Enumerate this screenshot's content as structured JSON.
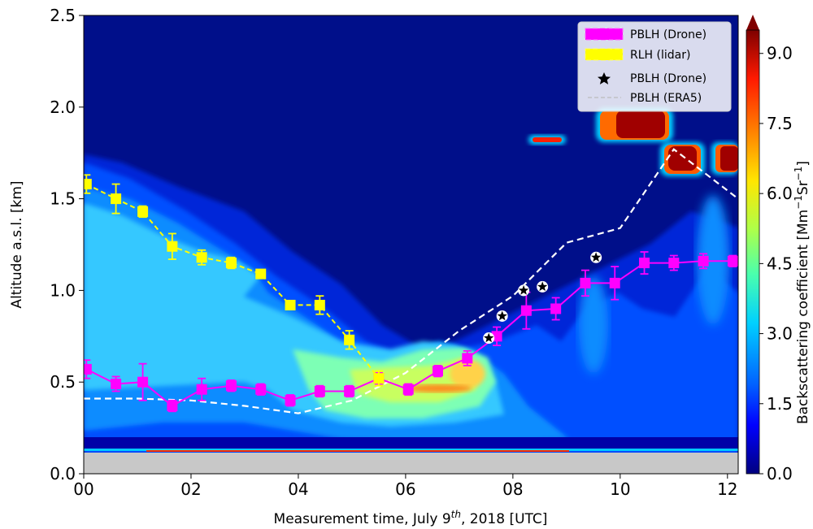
{
  "chart_data": {
    "type": "contour_with_lines",
    "xlabel": "Measurement time, July 9th, 2018 [UTC]",
    "xlabel_parts": {
      "pre": "Measurement time, July 9",
      "sup": "th",
      "post": ", 2018 [UTC]"
    },
    "ylabel": "Altitude a.s.l. [km]",
    "xlim": [
      0,
      12.2
    ],
    "ylim": [
      0,
      2.5
    ],
    "x_ticks": [
      0,
      2,
      4,
      6,
      8,
      10,
      12
    ],
    "x_tick_labels": [
      "00",
      "02",
      "04",
      "06",
      "08",
      "10",
      "12"
    ],
    "y_ticks": [
      0,
      0.5,
      1.0,
      1.5,
      2.0,
      2.5
    ],
    "y_tick_labels": [
      "0.0",
      "0.5",
      "1.0",
      "1.5",
      "2.0",
      "2.5"
    ],
    "colorbar": {
      "label": "Backscattering coefficient [Mm⁻¹Sr⁻¹]",
      "label_parts": {
        "pre": "Backscattering coefficient [Mm",
        "sup1": "−1",
        "mid": "Sr",
        "sup2": "−1",
        "post": "]"
      },
      "range": [
        0,
        9.5
      ],
      "ticks": [
        0,
        1.5,
        3.0,
        4.5,
        6.0,
        7.5,
        9.0
      ],
      "tick_labels": [
        "0.0",
        "1.5",
        "3.0",
        "4.5",
        "6.0",
        "7.5",
        "9.0"
      ],
      "colormap": "jet"
    },
    "background_color": "#000f8a",
    "ground_color": "#c8c8c8",
    "series": [
      {
        "name": "PBLH (Drone)",
        "kind": "line_errorbar",
        "color": "#ff00ff",
        "x": [
          0.05,
          0.6,
          1.1,
          1.65,
          2.2,
          2.75,
          3.3,
          3.85,
          4.4,
          4.95,
          5.5,
          6.05,
          6.6,
          7.15,
          7.7,
          8.25,
          8.8,
          9.35,
          9.9,
          10.45,
          11.0,
          11.55,
          12.1
        ],
        "y": [
          0.57,
          0.49,
          0.5,
          0.37,
          0.46,
          0.48,
          0.46,
          0.4,
          0.45,
          0.45,
          0.52,
          0.46,
          0.56,
          0.63,
          0.75,
          0.89,
          0.9,
          1.04,
          1.04,
          1.15,
          1.15,
          1.16,
          1.16
        ],
        "err": [
          0.05,
          0.04,
          0.1,
          0.03,
          0.06,
          0.03,
          0.03,
          0.03,
          0.03,
          0.03,
          0.03,
          0.03,
          0.03,
          0.04,
          0.05,
          0.1,
          0.06,
          0.07,
          0.09,
          0.06,
          0.04,
          0.04,
          0.03
        ]
      },
      {
        "name": "RLH (lidar)",
        "kind": "line_errorbar",
        "color": "#ffff00",
        "x": [
          0.05,
          0.6,
          1.1,
          1.65,
          2.2,
          2.75,
          3.3,
          3.85,
          4.4,
          4.95,
          5.5
        ],
        "y": [
          1.58,
          1.5,
          1.43,
          1.24,
          1.18,
          1.15,
          1.09,
          0.92,
          0.92,
          0.73,
          0.52
        ],
        "err": [
          0.05,
          0.08,
          0.03,
          0.07,
          0.04,
          0.03,
          0.02,
          0.02,
          0.05,
          0.05,
          0.04
        ]
      },
      {
        "name": "PBLH (Drone)",
        "kind": "scatter_star",
        "color": "#000000",
        "x": [
          7.55,
          7.8,
          8.2,
          8.55,
          9.55
        ],
        "y": [
          0.74,
          0.86,
          1.0,
          1.02,
          1.18
        ]
      },
      {
        "name": "PBLH (ERA5)",
        "kind": "dashed_line",
        "color": "#ffffff",
        "x": [
          0,
          1,
          2,
          3,
          4,
          5,
          6,
          7,
          8,
          9,
          10,
          11,
          12.2
        ],
        "y": [
          0.41,
          0.41,
          0.4,
          0.37,
          0.33,
          0.4,
          0.55,
          0.78,
          0.97,
          1.26,
          1.34,
          1.77,
          1.5
        ]
      }
    ],
    "legend": {
      "placement": "top-right"
    }
  }
}
